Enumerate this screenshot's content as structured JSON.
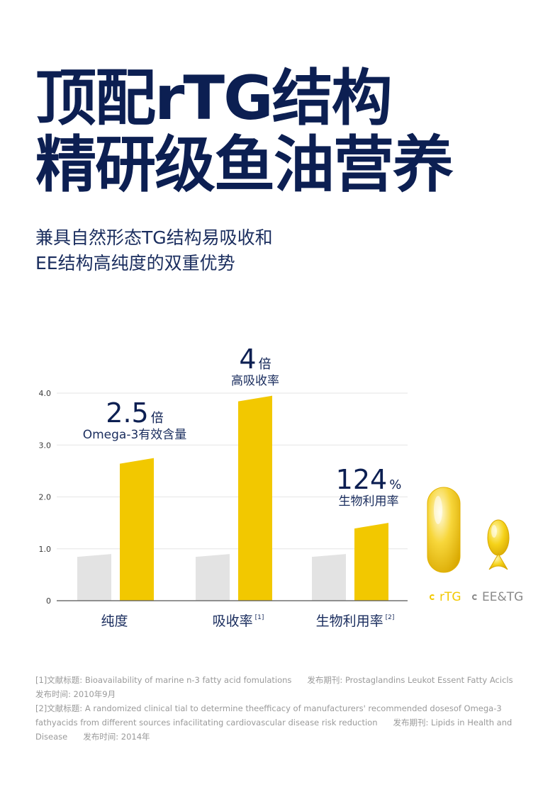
{
  "headline": {
    "line1": "顶配rTG结构",
    "line2": "精研级鱼油营养"
  },
  "subheadline": {
    "line1": "兼具自然形态TG结构易吸收和",
    "line2": "EE结构高纯度的双重优势"
  },
  "colors": {
    "navy": "#0c1f52",
    "gold": "#f2c800",
    "gray": "#e3e3e3",
    "axis": "#3a3a3a"
  },
  "chart_data": {
    "type": "bar",
    "categories": [
      "纯度",
      "吸收率",
      "生物利用率"
    ],
    "category_notes": [
      "",
      "[1]",
      "[2]"
    ],
    "series": [
      {
        "name": "EE&TG",
        "values": [
          0.9,
          0.9,
          0.9
        ],
        "color": "#e3e3e3"
      },
      {
        "name": "rTG",
        "values": [
          2.75,
          3.95,
          1.5
        ],
        "color": "#f2c800"
      }
    ],
    "ylim": [
      0,
      4.2
    ],
    "yticks": [
      "0",
      "1.0",
      "2.0",
      "3.0",
      "4.0"
    ],
    "ytick_values": [
      0,
      1,
      2,
      3,
      4
    ],
    "grid": true,
    "legend": "right",
    "annotations": [
      {
        "value": "2.5",
        "unit": "倍",
        "label": "Omega-3有效含量"
      },
      {
        "value": "4",
        "unit": "倍",
        "label": "高吸收率"
      },
      {
        "value": "124",
        "unit": "%",
        "label": "生物利用率"
      }
    ]
  },
  "legend_items": [
    {
      "label": "rTG",
      "icon": "capsule-oval-icon"
    },
    {
      "label": "EE&TG",
      "icon": "capsule-fish-icon"
    }
  ],
  "references": {
    "ref1_title": "[1]文献标题: Bioavailability of marine n-3 fatty acid fomulations",
    "ref1_journal": "发布期刊: Prostaglandins Leukot Essent Fatty Acicls",
    "ref1_date": "发布时间: 2010年9月",
    "ref2_title": "[2]文献标题: A randomized clinical tial to determine theefficacy of manufacturers' recommended dosesof Omega-3",
    "ref2_title_cont": "fathyacids from different sources infacilitating cardiovascular disease risk reduction",
    "ref2_journal": "发布期刊: Lipids in Health and",
    "ref2_journal_cont": "Disease",
    "ref2_date": "发布时间: 2014年"
  }
}
